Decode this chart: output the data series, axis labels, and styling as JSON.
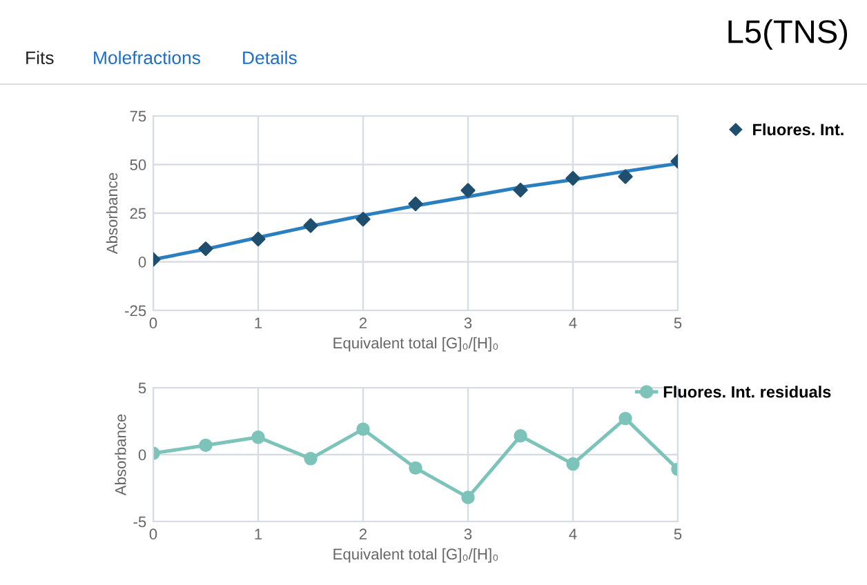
{
  "chart_data": [
    {
      "type": "other",
      "title": "L5(TNS)",
      "annotations": [
        "Fits",
        "Molefractions",
        "Details"
      ]
    },
    {
      "type": "scatter",
      "xlabel": "Equivalent total [G]₀/[H]₀",
      "ylabel": "Absorbance",
      "x": [
        0,
        0.5,
        1,
        1.5,
        2,
        2.5,
        3,
        3.5,
        4,
        4.5,
        5
      ],
      "xlim": [
        0,
        5
      ],
      "xticks": [
        0,
        1,
        2,
        3,
        4,
        5
      ],
      "ylim": [
        -25,
        75
      ],
      "yticks": [
        -25,
        0,
        25,
        50,
        75
      ],
      "grid": true,
      "legend": "top right",
      "series": [
        {
          "name": "Fluores. Int.",
          "type": "scatter",
          "marker": "diamond",
          "color": "#1f4e6e",
          "values": [
            1.2,
            6.7,
            11.7,
            18.6,
            21.9,
            29.8,
            36.7,
            36.9,
            42.9,
            43.8,
            51.7
          ]
        },
        {
          "type": "line",
          "marker": "none",
          "color": "#2a7fc1",
          "values": [
            1.2,
            6.5,
            12.5,
            18.3,
            23.8,
            28.8,
            33.5,
            38.3,
            42.2,
            46.5,
            50.5
          ]
        }
      ]
    },
    {
      "type": "line",
      "xlabel": "Equivalent total [G]₀/[H]₀",
      "ylabel": "Absorbance",
      "x": [
        0,
        0.5,
        1,
        1.5,
        2,
        2.5,
        3,
        3.5,
        4,
        4.5,
        5
      ],
      "xlim": [
        0,
        5
      ],
      "xticks": [
        0,
        1,
        2,
        3,
        4,
        5
      ],
      "ylim": [
        -5,
        5
      ],
      "yticks": [
        -5,
        0,
        5
      ],
      "grid": true,
      "legend": "top right",
      "marker": "circle",
      "series": [
        {
          "name": "Fluores. Int. residuals",
          "color": "#7cc3b9",
          "values": [
            0.1,
            0.7,
            1.3,
            -0.3,
            1.9,
            -1.0,
            -3.2,
            1.4,
            -0.7,
            2.7,
            -1.1
          ]
        }
      ]
    }
  ]
}
